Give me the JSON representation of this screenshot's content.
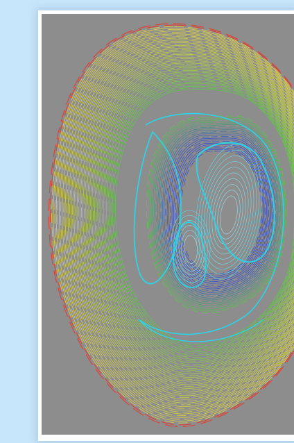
{
  "viewer": {
    "background_color": "#c7e5fb",
    "panel_color": "#ffffff",
    "plot_background": "#8d8d8d"
  },
  "colors": {
    "separatrix": "#2bd3e6",
    "edge": "#d9443a",
    "outer": "#e3d04a",
    "middle": "#5fc24e",
    "inner": "#3a52c8",
    "island": "#5fd0e0"
  }
}
